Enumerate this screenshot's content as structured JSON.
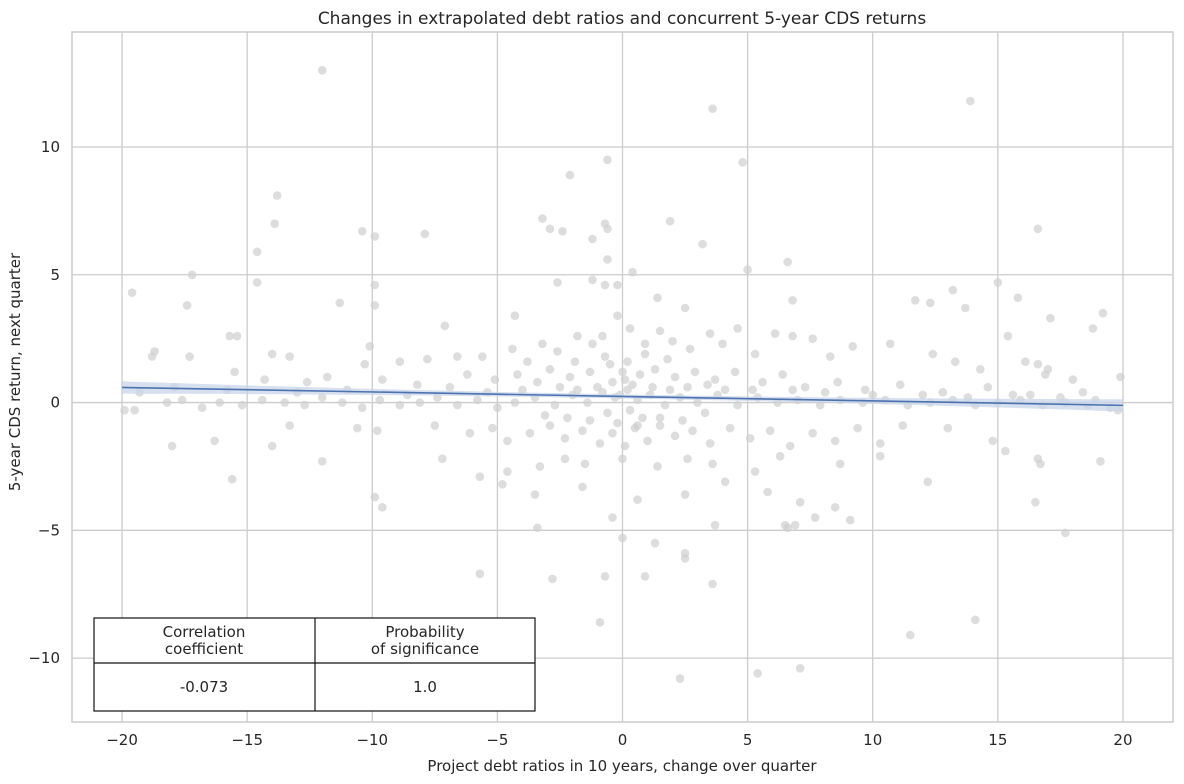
{
  "chart_data": {
    "type": "scatter",
    "title": "Changes in extrapolated debt ratios and concurrent 5-year CDS returns",
    "xlabel": "Project debt ratios in 10 years, change over quarter",
    "ylabel": "5-year CDS return, next quarter",
    "xlim": [
      -22,
      22
    ],
    "ylim": [
      -12.5,
      14.5
    ],
    "x_ticks": [
      -20,
      -15,
      -10,
      -5,
      0,
      5,
      10,
      15,
      20
    ],
    "y_ticks": [
      -10,
      -5,
      0,
      5,
      10
    ],
    "x_tick_labels": [
      "−20",
      "−15",
      "−10",
      "−5",
      "0",
      "5",
      "10",
      "15",
      "20"
    ],
    "y_tick_labels": [
      "−10",
      "−5",
      "0",
      "5",
      "10"
    ],
    "grid": true,
    "point_color": "#cfcfcf",
    "line_color": "#4c72b0",
    "band_color": "#c9d5ea",
    "points": [
      [
        -12,
        13.0
      ],
      [
        3.6,
        11.5
      ],
      [
        13.9,
        11.8
      ],
      [
        -0.6,
        9.5
      ],
      [
        4.8,
        9.4
      ],
      [
        -2.1,
        8.9
      ],
      [
        -13.8,
        8.1
      ],
      [
        -13.9,
        7.0
      ],
      [
        -0.7,
        7.0
      ],
      [
        -3.2,
        7.2
      ],
      [
        1.9,
        7.1
      ],
      [
        -1.2,
        6.4
      ],
      [
        -10.4,
        6.7
      ],
      [
        -9.9,
        6.5
      ],
      [
        -2.9,
        6.8
      ],
      [
        -2.4,
        6.7
      ],
      [
        -0.6,
        6.8
      ],
      [
        3.2,
        6.2
      ],
      [
        -7.9,
        6.6
      ],
      [
        16.6,
        6.8
      ],
      [
        -14.6,
        5.9
      ],
      [
        -0.6,
        5.6
      ],
      [
        6.6,
        5.5
      ],
      [
        5.0,
        5.2
      ],
      [
        -17.2,
        5.0
      ],
      [
        0.4,
        5.1
      ],
      [
        -14.6,
        4.7
      ],
      [
        -9.9,
        4.6
      ],
      [
        -19.6,
        4.3
      ],
      [
        -2.6,
        4.7
      ],
      [
        -1.2,
        4.8
      ],
      [
        -0.7,
        4.6
      ],
      [
        -0.2,
        4.6
      ],
      [
        1.4,
        4.1
      ],
      [
        15.0,
        4.7
      ],
      [
        13.2,
        4.4
      ],
      [
        11.7,
        4.0
      ],
      [
        12.3,
        3.9
      ],
      [
        15.8,
        4.1
      ],
      [
        13.7,
        3.7
      ],
      [
        -11.3,
        3.9
      ],
      [
        -17.4,
        3.8
      ],
      [
        -9.9,
        3.8
      ],
      [
        -4.3,
        3.4
      ],
      [
        -7.1,
        3.0
      ],
      [
        2.5,
        3.7
      ],
      [
        6.8,
        4.0
      ],
      [
        17.1,
        3.3
      ],
      [
        19.2,
        3.5
      ],
      [
        15.4,
        2.6
      ],
      [
        18.8,
        2.9
      ],
      [
        16.6,
        1.5
      ],
      [
        -15.7,
        2.6
      ],
      [
        -15.4,
        2.6
      ],
      [
        -18.7,
        2.0
      ],
      [
        -18.8,
        1.8
      ],
      [
        -17.3,
        1.8
      ],
      [
        -13.3,
        1.8
      ],
      [
        -14.0,
        1.9
      ],
      [
        -10.1,
        2.2
      ],
      [
        -10.3,
        1.5
      ],
      [
        -8.9,
        1.6
      ],
      [
        -7.8,
        1.7
      ],
      [
        -6.6,
        1.8
      ],
      [
        -5.6,
        1.8
      ],
      [
        -4.4,
        2.1
      ],
      [
        -3.8,
        1.6
      ],
      [
        -3.2,
        2.3
      ],
      [
        -2.6,
        2.0
      ],
      [
        -1.8,
        2.6
      ],
      [
        -1.2,
        2.3
      ],
      [
        -0.8,
        2.6
      ],
      [
        -0.2,
        3.4
      ],
      [
        0.3,
        2.9
      ],
      [
        0.9,
        2.3
      ],
      [
        1.5,
        2.8
      ],
      [
        2.0,
        2.4
      ],
      [
        2.7,
        2.1
      ],
      [
        3.5,
        2.7
      ],
      [
        4.0,
        2.3
      ],
      [
        4.6,
        2.9
      ],
      [
        5.3,
        1.9
      ],
      [
        6.1,
        2.7
      ],
      [
        6.8,
        2.6
      ],
      [
        7.6,
        2.5
      ],
      [
        8.3,
        1.8
      ],
      [
        9.2,
        2.2
      ],
      [
        10.7,
        2.3
      ],
      [
        12.4,
        1.9
      ],
      [
        13.3,
        1.6
      ],
      [
        14.3,
        1.3
      ],
      [
        16.1,
        1.6
      ],
      [
        16.9,
        1.1
      ],
      [
        17.0,
        1.3
      ],
      [
        18.0,
        0.9
      ],
      [
        19.9,
        1.0
      ],
      [
        -15.5,
        1.2
      ],
      [
        -14.3,
        0.9
      ],
      [
        -12.6,
        0.8
      ],
      [
        -11.8,
        1.0
      ],
      [
        -9.6,
        0.9
      ],
      [
        -8.2,
        0.7
      ],
      [
        -6.2,
        1.1
      ],
      [
        -5.1,
        0.9
      ],
      [
        -4.2,
        1.1
      ],
      [
        -2.9,
        1.3
      ],
      [
        -2.1,
        1.0
      ],
      [
        -1.3,
        1.2
      ],
      [
        -0.5,
        1.5
      ],
      [
        0.2,
        1.6
      ],
      [
        0.7,
        1.1
      ],
      [
        1.3,
        1.3
      ],
      [
        2.1,
        1.0
      ],
      [
        2.9,
        1.2
      ],
      [
        3.7,
        0.9
      ],
      [
        4.5,
        1.2
      ],
      [
        5.6,
        0.8
      ],
      [
        6.4,
        1.1
      ],
      [
        7.3,
        0.6
      ],
      [
        8.6,
        0.8
      ],
      [
        9.7,
        0.5
      ],
      [
        11.1,
        0.7
      ],
      [
        12.8,
        0.4
      ],
      [
        14.6,
        0.6
      ],
      [
        15.6,
        0.3
      ],
      [
        17.5,
        0.2
      ],
      [
        -19.9,
        -0.3
      ],
      [
        -19.5,
        -0.3
      ],
      [
        -18.2,
        0.0
      ],
      [
        -17.6,
        0.1
      ],
      [
        -16.8,
        -0.2
      ],
      [
        -16.1,
        0.0
      ],
      [
        -15.2,
        -0.1
      ],
      [
        -14.4,
        0.1
      ],
      [
        -13.5,
        0.0
      ],
      [
        -12.7,
        -0.1
      ],
      [
        -12.0,
        0.2
      ],
      [
        -11.2,
        0.0
      ],
      [
        -10.4,
        -0.2
      ],
      [
        -9.7,
        0.1
      ],
      [
        -8.9,
        -0.1
      ],
      [
        -8.1,
        0.0
      ],
      [
        -7.4,
        0.2
      ],
      [
        -6.6,
        -0.1
      ],
      [
        -5.8,
        0.1
      ],
      [
        -5.0,
        -0.2
      ],
      [
        -4.3,
        0.0
      ],
      [
        -3.5,
        0.2
      ],
      [
        -2.7,
        -0.1
      ],
      [
        -2.0,
        0.3
      ],
      [
        -1.4,
        0.0
      ],
      [
        -0.8,
        0.4
      ],
      [
        -0.3,
        0.2
      ],
      [
        0.2,
        0.5
      ],
      [
        0.6,
        0.1
      ],
      [
        1.1,
        0.3
      ],
      [
        1.7,
        -0.1
      ],
      [
        2.3,
        0.2
      ],
      [
        3.0,
        0.0
      ],
      [
        3.8,
        0.3
      ],
      [
        4.6,
        -0.1
      ],
      [
        5.4,
        0.2
      ],
      [
        6.2,
        0.0
      ],
      [
        7.0,
        0.1
      ],
      [
        7.9,
        -0.1
      ],
      [
        8.7,
        0.1
      ],
      [
        9.6,
        0.0
      ],
      [
        10.5,
        0.1
      ],
      [
        11.4,
        -0.1
      ],
      [
        12.3,
        0.0
      ],
      [
        13.2,
        0.1
      ],
      [
        14.1,
        -0.1
      ],
      [
        15.0,
        0.0
      ],
      [
        15.9,
        0.1
      ],
      [
        16.8,
        -0.1
      ],
      [
        17.7,
        0.0
      ],
      [
        18.6,
        -0.1
      ],
      [
        19.5,
        -0.2
      ],
      [
        19.8,
        -0.3
      ],
      [
        18.9,
        0.1
      ],
      [
        -18.0,
        -1.7
      ],
      [
        -16.3,
        -1.5
      ],
      [
        -14.0,
        -1.7
      ],
      [
        -13.3,
        -0.9
      ],
      [
        -12.0,
        -2.3
      ],
      [
        -10.6,
        -1.0
      ],
      [
        -9.8,
        -1.1
      ],
      [
        -7.5,
        -0.9
      ],
      [
        -6.1,
        -1.2
      ],
      [
        -5.2,
        -1.0
      ],
      [
        -4.6,
        -1.5
      ],
      [
        -3.7,
        -1.2
      ],
      [
        -2.9,
        -0.9
      ],
      [
        -2.3,
        -1.4
      ],
      [
        -1.6,
        -1.1
      ],
      [
        -0.9,
        -1.6
      ],
      [
        -0.4,
        -1.2
      ],
      [
        0.1,
        -1.7
      ],
      [
        0.5,
        -1.0
      ],
      [
        1.0,
        -1.5
      ],
      [
        1.5,
        -0.9
      ],
      [
        2.1,
        -1.3
      ],
      [
        2.8,
        -1.1
      ],
      [
        3.5,
        -1.6
      ],
      [
        4.3,
        -1.0
      ],
      [
        5.1,
        -1.4
      ],
      [
        5.9,
        -1.1
      ],
      [
        6.7,
        -1.7
      ],
      [
        7.6,
        -1.2
      ],
      [
        8.5,
        -1.5
      ],
      [
        9.4,
        -1.0
      ],
      [
        10.3,
        -1.6
      ],
      [
        11.2,
        -0.9
      ],
      [
        13.0,
        -1.0
      ],
      [
        14.8,
        -1.5
      ],
      [
        15.3,
        -1.9
      ],
      [
        16.6,
        -2.2
      ],
      [
        16.7,
        -2.4
      ],
      [
        19.1,
        -2.3
      ],
      [
        12.2,
        -3.1
      ],
      [
        10.3,
        -2.1
      ],
      [
        8.7,
        -2.4
      ],
      [
        6.3,
        -2.1
      ],
      [
        5.3,
        -2.7
      ],
      [
        3.6,
        -2.4
      ],
      [
        2.6,
        -2.2
      ],
      [
        1.4,
        -2.5
      ],
      [
        0.0,
        -2.2
      ],
      [
        -1.5,
        -2.4
      ],
      [
        -2.3,
        -2.2
      ],
      [
        -3.3,
        -2.5
      ],
      [
        -4.6,
        -2.7
      ],
      [
        -5.7,
        -2.9
      ],
      [
        -7.2,
        -2.2
      ],
      [
        -15.6,
        -3.0
      ],
      [
        -9.9,
        -3.7
      ],
      [
        -9.6,
        -4.1
      ],
      [
        -4.8,
        -3.2
      ],
      [
        -3.5,
        -3.6
      ],
      [
        -1.6,
        -3.3
      ],
      [
        -0.4,
        -4.5
      ],
      [
        0.6,
        -3.8
      ],
      [
        2.5,
        -3.6
      ],
      [
        3.7,
        -4.8
      ],
      [
        4.1,
        -3.1
      ],
      [
        5.8,
        -3.5
      ],
      [
        7.1,
        -3.9
      ],
      [
        7.7,
        -4.5
      ],
      [
        8.5,
        -4.1
      ],
      [
        9.1,
        -4.6
      ],
      [
        16.5,
        -3.9
      ],
      [
        17.7,
        -5.1
      ],
      [
        -3.4,
        -4.9
      ],
      [
        0.0,
        -5.3
      ],
      [
        1.3,
        -5.5
      ],
      [
        2.5,
        -5.9
      ],
      [
        2.5,
        -6.1
      ],
      [
        3.6,
        -7.1
      ],
      [
        6.5,
        -4.8
      ],
      [
        6.6,
        -4.9
      ],
      [
        6.9,
        -4.8
      ],
      [
        -5.7,
        -6.7
      ],
      [
        -2.8,
        -6.9
      ],
      [
        -0.7,
        -6.8
      ],
      [
        0.9,
        -6.8
      ],
      [
        -0.9,
        -8.6
      ],
      [
        11.5,
        -9.1
      ],
      [
        14.1,
        -8.5
      ],
      [
        7.1,
        -10.4
      ],
      [
        5.4,
        -10.6
      ],
      [
        2.3,
        -10.8
      ],
      [
        -0.4,
        0.8
      ],
      [
        0.1,
        0.9
      ],
      [
        0.4,
        0.7
      ],
      [
        -0.1,
        0.3
      ],
      [
        0.3,
        -0.3
      ],
      [
        -0.6,
        -0.4
      ],
      [
        0.8,
        -0.6
      ],
      [
        -1.0,
        0.6
      ],
      [
        1.2,
        0.6
      ],
      [
        -1.8,
        0.5
      ],
      [
        1.9,
        0.5
      ],
      [
        -2.5,
        0.6
      ],
      [
        2.6,
        0.6
      ],
      [
        -3.1,
        -0.5
      ],
      [
        3.3,
        -0.4
      ],
      [
        -4.0,
        0.5
      ],
      [
        4.1,
        0.5
      ],
      [
        -0.2,
        -0.8
      ],
      [
        0.6,
        -0.9
      ],
      [
        -1.3,
        -0.7
      ],
      [
        1.5,
        -0.6
      ],
      [
        -2.2,
        -0.6
      ],
      [
        2.4,
        -0.7
      ],
      [
        0.0,
        1.2
      ],
      [
        -0.7,
        1.8
      ],
      [
        0.9,
        1.9
      ],
      [
        -1.9,
        1.6
      ],
      [
        1.8,
        1.7
      ],
      [
        -3.4,
        0.8
      ],
      [
        3.4,
        0.7
      ],
      [
        -5.4,
        0.4
      ],
      [
        5.2,
        0.5
      ],
      [
        -6.9,
        0.6
      ],
      [
        6.8,
        0.5
      ],
      [
        -8.6,
        0.3
      ],
      [
        8.1,
        0.4
      ],
      [
        -11.0,
        0.5
      ],
      [
        10.0,
        0.3
      ],
      [
        -13.0,
        0.4
      ],
      [
        12.0,
        0.3
      ],
      [
        -15.8,
        0.5
      ],
      [
        13.8,
        0.2
      ],
      [
        -17.9,
        0.6
      ],
      [
        16.3,
        0.3
      ],
      [
        -19.3,
        0.4
      ],
      [
        18.4,
        0.4
      ]
    ],
    "regression": {
      "slope": -0.0175,
      "intercept": 0.24,
      "x_range": [
        -20,
        20
      ]
    },
    "stats_table": {
      "headers": [
        "Correlation\ncoefficient",
        "Probability\nof significance"
      ],
      "values": [
        "-0.073",
        "1.0"
      ]
    }
  }
}
